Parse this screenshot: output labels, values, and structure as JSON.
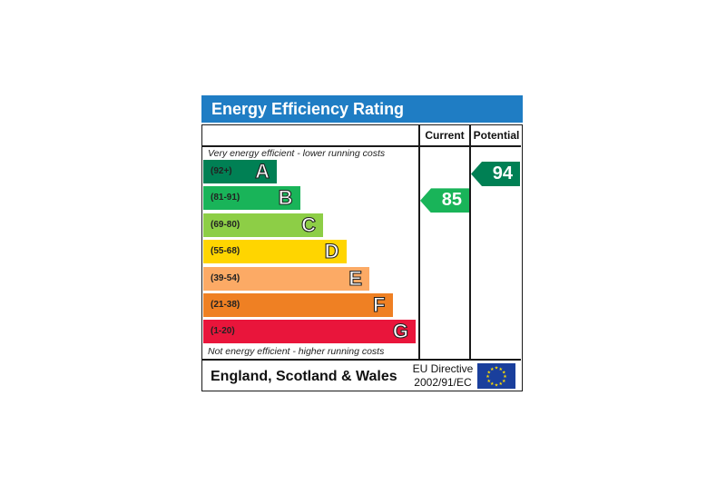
{
  "title": "Energy Efficiency Rating",
  "columns": {
    "current": "Current",
    "potential": "Potential"
  },
  "top_caption": "Very energy efficient - lower running costs",
  "bottom_caption": "Not energy efficient - higher running costs",
  "footer": {
    "region": "England, Scotland & Wales",
    "directive_line1": "EU Directive",
    "directive_line2": "2002/91/EC"
  },
  "chart_data": {
    "type": "bar",
    "title": "Energy Efficiency Rating",
    "categories": [
      "A",
      "B",
      "C",
      "D",
      "E",
      "F",
      "G"
    ],
    "ranges": [
      "(92+)",
      "(81-91)",
      "(69-80)",
      "(55-68)",
      "(39-54)",
      "(21-38)",
      "(1-20)"
    ],
    "band_colors": [
      "#008054",
      "#19b459",
      "#8dce46",
      "#ffd500",
      "#fcaa65",
      "#ef8023",
      "#e9153b"
    ],
    "current": {
      "label": "Current",
      "value": 85,
      "band": "B",
      "color": "#19b459"
    },
    "potential": {
      "label": "Potential",
      "value": 94,
      "band": "A",
      "color": "#008054"
    }
  }
}
